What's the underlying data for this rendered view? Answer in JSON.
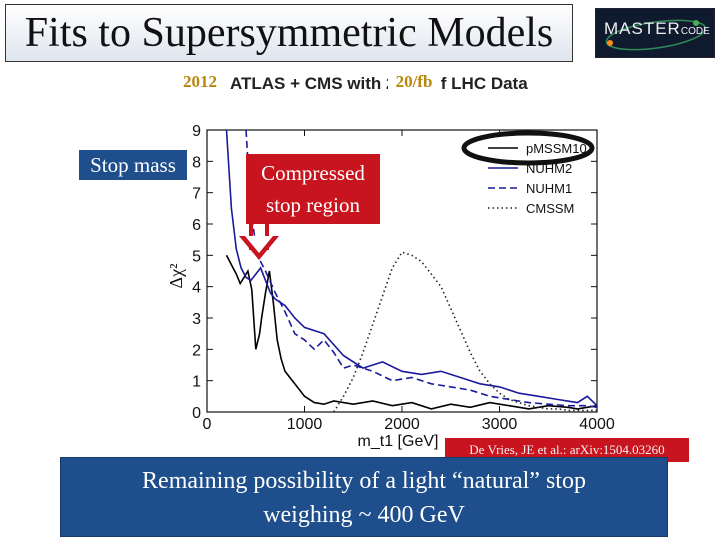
{
  "slide": {
    "title": "Fits to Supersymmetric Models",
    "logo_text": "MASTER",
    "logo_code": "CODE",
    "header_text": "ATLAS + CMS with 20/fb of LHC Data",
    "year_overlay": "2012",
    "lumi_overlay": "20/fb",
    "stop_mass_label": "Stop mass",
    "compressed_label_line1": "Compressed",
    "compressed_label_line2": "stop region",
    "citation": "De Vries, JE et al.: arXiv:1504.03260",
    "conclusion_line1": "Remaining possibility of a light “natural” stop",
    "conclusion_line2": "weighing ~ 400 GeV",
    "colors": {
      "title_bg": "#e6ebf2",
      "accent_blue": "#1e4e8c",
      "accent_red": "#c8141e",
      "nuhm_blue": "#1a1a9c",
      "logo_bg": "#101a2e"
    }
  },
  "chart_data": {
    "type": "line",
    "xlabel": "m_t1 [GeV]",
    "ylabel": "Δχ²",
    "xlim": [
      0,
      4000
    ],
    "ylim": [
      0,
      9
    ],
    "x_ticks": [
      0,
      1000,
      2000,
      3000,
      4000
    ],
    "y_ticks": [
      0,
      1,
      2,
      3,
      4,
      5,
      6,
      7,
      8,
      9
    ],
    "grid": false,
    "legend_position": "top-right",
    "series": [
      {
        "name": "pMSSM10",
        "color": "#000000",
        "dash": "solid",
        "x": [
          200,
          250,
          300,
          340,
          380,
          420,
          460,
          500,
          540,
          560,
          600,
          640,
          680,
          720,
          760,
          800,
          900,
          1000,
          1100,
          1200,
          1300,
          1400,
          1500,
          1700,
          1900,
          2100,
          2300,
          2500,
          2700,
          2900,
          3100,
          3300,
          3500,
          3700,
          3800,
          3900,
          4000
        ],
        "y": [
          5.0,
          4.7,
          4.4,
          4.1,
          4.3,
          4.5,
          3.9,
          2.0,
          2.5,
          3.0,
          3.8,
          4.5,
          3.5,
          2.3,
          1.7,
          1.3,
          0.9,
          0.5,
          0.3,
          0.25,
          0.35,
          0.3,
          0.25,
          0.35,
          0.2,
          0.3,
          0.1,
          0.25,
          0.15,
          0.3,
          0.2,
          0.1,
          0.2,
          0.15,
          0.1,
          0.15,
          0.2
        ]
      },
      {
        "name": "NUHM2",
        "color": "#1a1a9c",
        "dash": "solid",
        "x": [
          200,
          250,
          300,
          350,
          400,
          450,
          500,
          550,
          600,
          650,
          700,
          800,
          900,
          1000,
          1200,
          1400,
          1600,
          1800,
          2000,
          2200,
          2400,
          2600,
          2800,
          3000,
          3200,
          3400,
          3600,
          3800,
          3900,
          4000
        ],
        "y": [
          9.0,
          6.5,
          5.2,
          4.6,
          4.3,
          4.2,
          4.4,
          4.6,
          4.2,
          3.8,
          3.6,
          3.4,
          3.0,
          2.7,
          2.5,
          1.8,
          1.4,
          1.6,
          1.3,
          1.2,
          1.3,
          1.1,
          0.9,
          0.8,
          0.6,
          0.5,
          0.4,
          0.3,
          0.5,
          0.2
        ]
      },
      {
        "name": "NUHM1",
        "color": "#1a1a9c",
        "dash": "dashed",
        "x": [
          400,
          450,
          500,
          550,
          600,
          700,
          800,
          900,
          1000,
          1100,
          1200,
          1300,
          1400,
          1500,
          1700,
          1900,
          2100,
          2300,
          2500,
          2700,
          2900,
          3100,
          3300,
          3500,
          3700,
          3900,
          4000
        ],
        "y": [
          9.0,
          6.5,
          5.3,
          4.8,
          4.5,
          3.8,
          3.2,
          2.5,
          2.3,
          2.0,
          2.3,
          1.9,
          1.4,
          1.5,
          1.3,
          1.0,
          1.1,
          0.9,
          0.8,
          0.7,
          0.5,
          0.4,
          0.3,
          0.25,
          0.2,
          0.2,
          0.15
        ]
      },
      {
        "name": "CMSSM",
        "color": "#222222",
        "dash": "dotted",
        "x": [
          1300,
          1400,
          1500,
          1600,
          1700,
          1800,
          1900,
          2000,
          2100,
          2200,
          2300,
          2400,
          2500,
          2600,
          2700,
          2800,
          2900,
          3000,
          3100,
          3200,
          3300,
          3400,
          3500,
          3600,
          3700,
          3800,
          3900,
          4000
        ],
        "y": [
          0.0,
          0.5,
          1.1,
          1.9,
          2.8,
          3.7,
          4.6,
          5.1,
          5.0,
          4.8,
          4.4,
          4.0,
          3.3,
          2.6,
          1.9,
          1.3,
          0.9,
          0.6,
          0.4,
          0.3,
          0.2,
          0.15,
          0.1,
          0.1,
          0.05,
          0.05,
          0.05,
          0.05
        ]
      }
    ]
  }
}
